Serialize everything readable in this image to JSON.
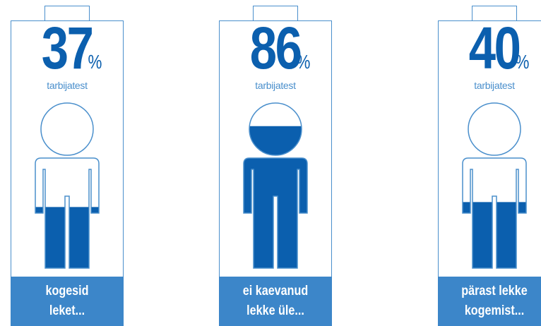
{
  "colors": {
    "accent": "#0b5fae",
    "outline": "#4a8fcc",
    "caption_bg": "#3c86c9"
  },
  "panels": [
    {
      "value": "37",
      "unit": "%",
      "subtitle": "tarbijatest",
      "caption_lines": [
        "kogesid",
        "leket..."
      ],
      "fill_level": 0.37
    },
    {
      "value": "86",
      "unit": "%",
      "subtitle": "tarbijatest",
      "caption_lines": [
        "ei kaevanud",
        "lekke üle..."
      ],
      "fill_level": 0.86
    },
    {
      "value": "40",
      "unit": "%",
      "subtitle": "tarbijatest",
      "caption_lines": [
        "pärast lekke",
        "kogemist..."
      ],
      "fill_level": 0.4
    }
  ]
}
